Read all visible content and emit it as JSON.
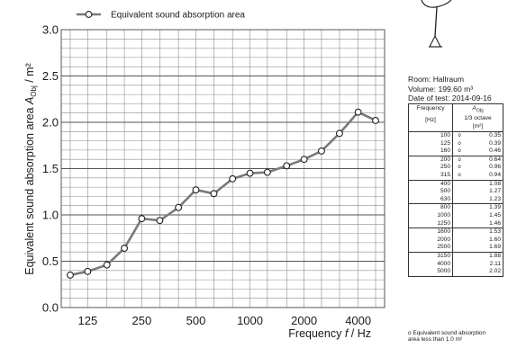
{
  "chart_data": {
    "type": "line",
    "series": [
      {
        "name": "Equivalent sound absorption area",
        "x": [
          100,
          125,
          160,
          200,
          250,
          315,
          400,
          500,
          630,
          800,
          1000,
          1250,
          1600,
          2000,
          2500,
          3150,
          4000,
          5000
        ],
        "values": [
          0.35,
          0.39,
          0.46,
          0.64,
          0.96,
          0.94,
          1.08,
          1.27,
          1.23,
          1.39,
          1.45,
          1.46,
          1.53,
          1.6,
          1.69,
          1.88,
          2.11,
          2.02
        ]
      }
    ],
    "x_tick_labels": [
      "125",
      "250",
      "500",
      "1000",
      "2000",
      "4000"
    ],
    "y_tick_labels": [
      "0.0",
      "0.5",
      "1.0",
      "1.5",
      "2.0",
      "2.5",
      "3.0"
    ],
    "xlabel": {
      "prefix": "Frequency ",
      "symbol": "f",
      "suffix": " / Hz"
    },
    "ylabel": {
      "prefix": "Equivalent sound absorption area  ",
      "symbol": "A",
      "subscript": "Obj",
      "suffix": " / m²"
    },
    "x_scale": "log",
    "ylim": [
      0,
      3.0
    ],
    "grid": true,
    "legend": "top-left",
    "colors": {
      "line": "#7a7a7a",
      "marker_fill": "#ffffff",
      "marker_stroke": "#222222",
      "grid": "#8c8c8c"
    }
  },
  "info": {
    "room": "Room: Hallraum",
    "volume": "Volume: 199.60 m³",
    "date": "Date of test: 2014-09-16"
  },
  "table": {
    "header_freq_lines": [
      "Frequency",
      "[Hz]"
    ],
    "header_val_symbol": "A",
    "header_val_sub": "Obj",
    "header_val_lines": [
      "1/3 octave",
      "[m²]"
    ],
    "rows": [
      {
        "f": "100",
        "v": "0.35",
        "mark": true
      },
      {
        "f": "125",
        "v": "0.39",
        "mark": true
      },
      {
        "f": "160",
        "v": "0.46",
        "mark": true
      },
      {
        "f": "200",
        "v": "0.64",
        "mark": true
      },
      {
        "f": "250",
        "v": "0.96",
        "mark": true
      },
      {
        "f": "315",
        "v": "0.94",
        "mark": true
      },
      {
        "f": "400",
        "v": "1.08",
        "mark": false
      },
      {
        "f": "500",
        "v": "1.27",
        "mark": false
      },
      {
        "f": "630",
        "v": "1.23",
        "mark": false
      },
      {
        "f": "800",
        "v": "1.39",
        "mark": false
      },
      {
        "f": "1000",
        "v": "1.45",
        "mark": false
      },
      {
        "f": "1250",
        "v": "1.46",
        "mark": false
      },
      {
        "f": "1600",
        "v": "1.53",
        "mark": false
      },
      {
        "f": "2000",
        "v": "1.60",
        "mark": false
      },
      {
        "f": "2500",
        "v": "1.69",
        "mark": false
      },
      {
        "f": "3150",
        "v": "1.88",
        "mark": false
      },
      {
        "f": "4000",
        "v": "2.11",
        "mark": false
      },
      {
        "f": "5000",
        "v": "2.02",
        "mark": false
      }
    ],
    "mark_symbol": "o"
  },
  "footnote": {
    "mark": "o",
    "line1": "Equivalent sound absorption",
    "line2": "area less than 1.0 m²"
  }
}
